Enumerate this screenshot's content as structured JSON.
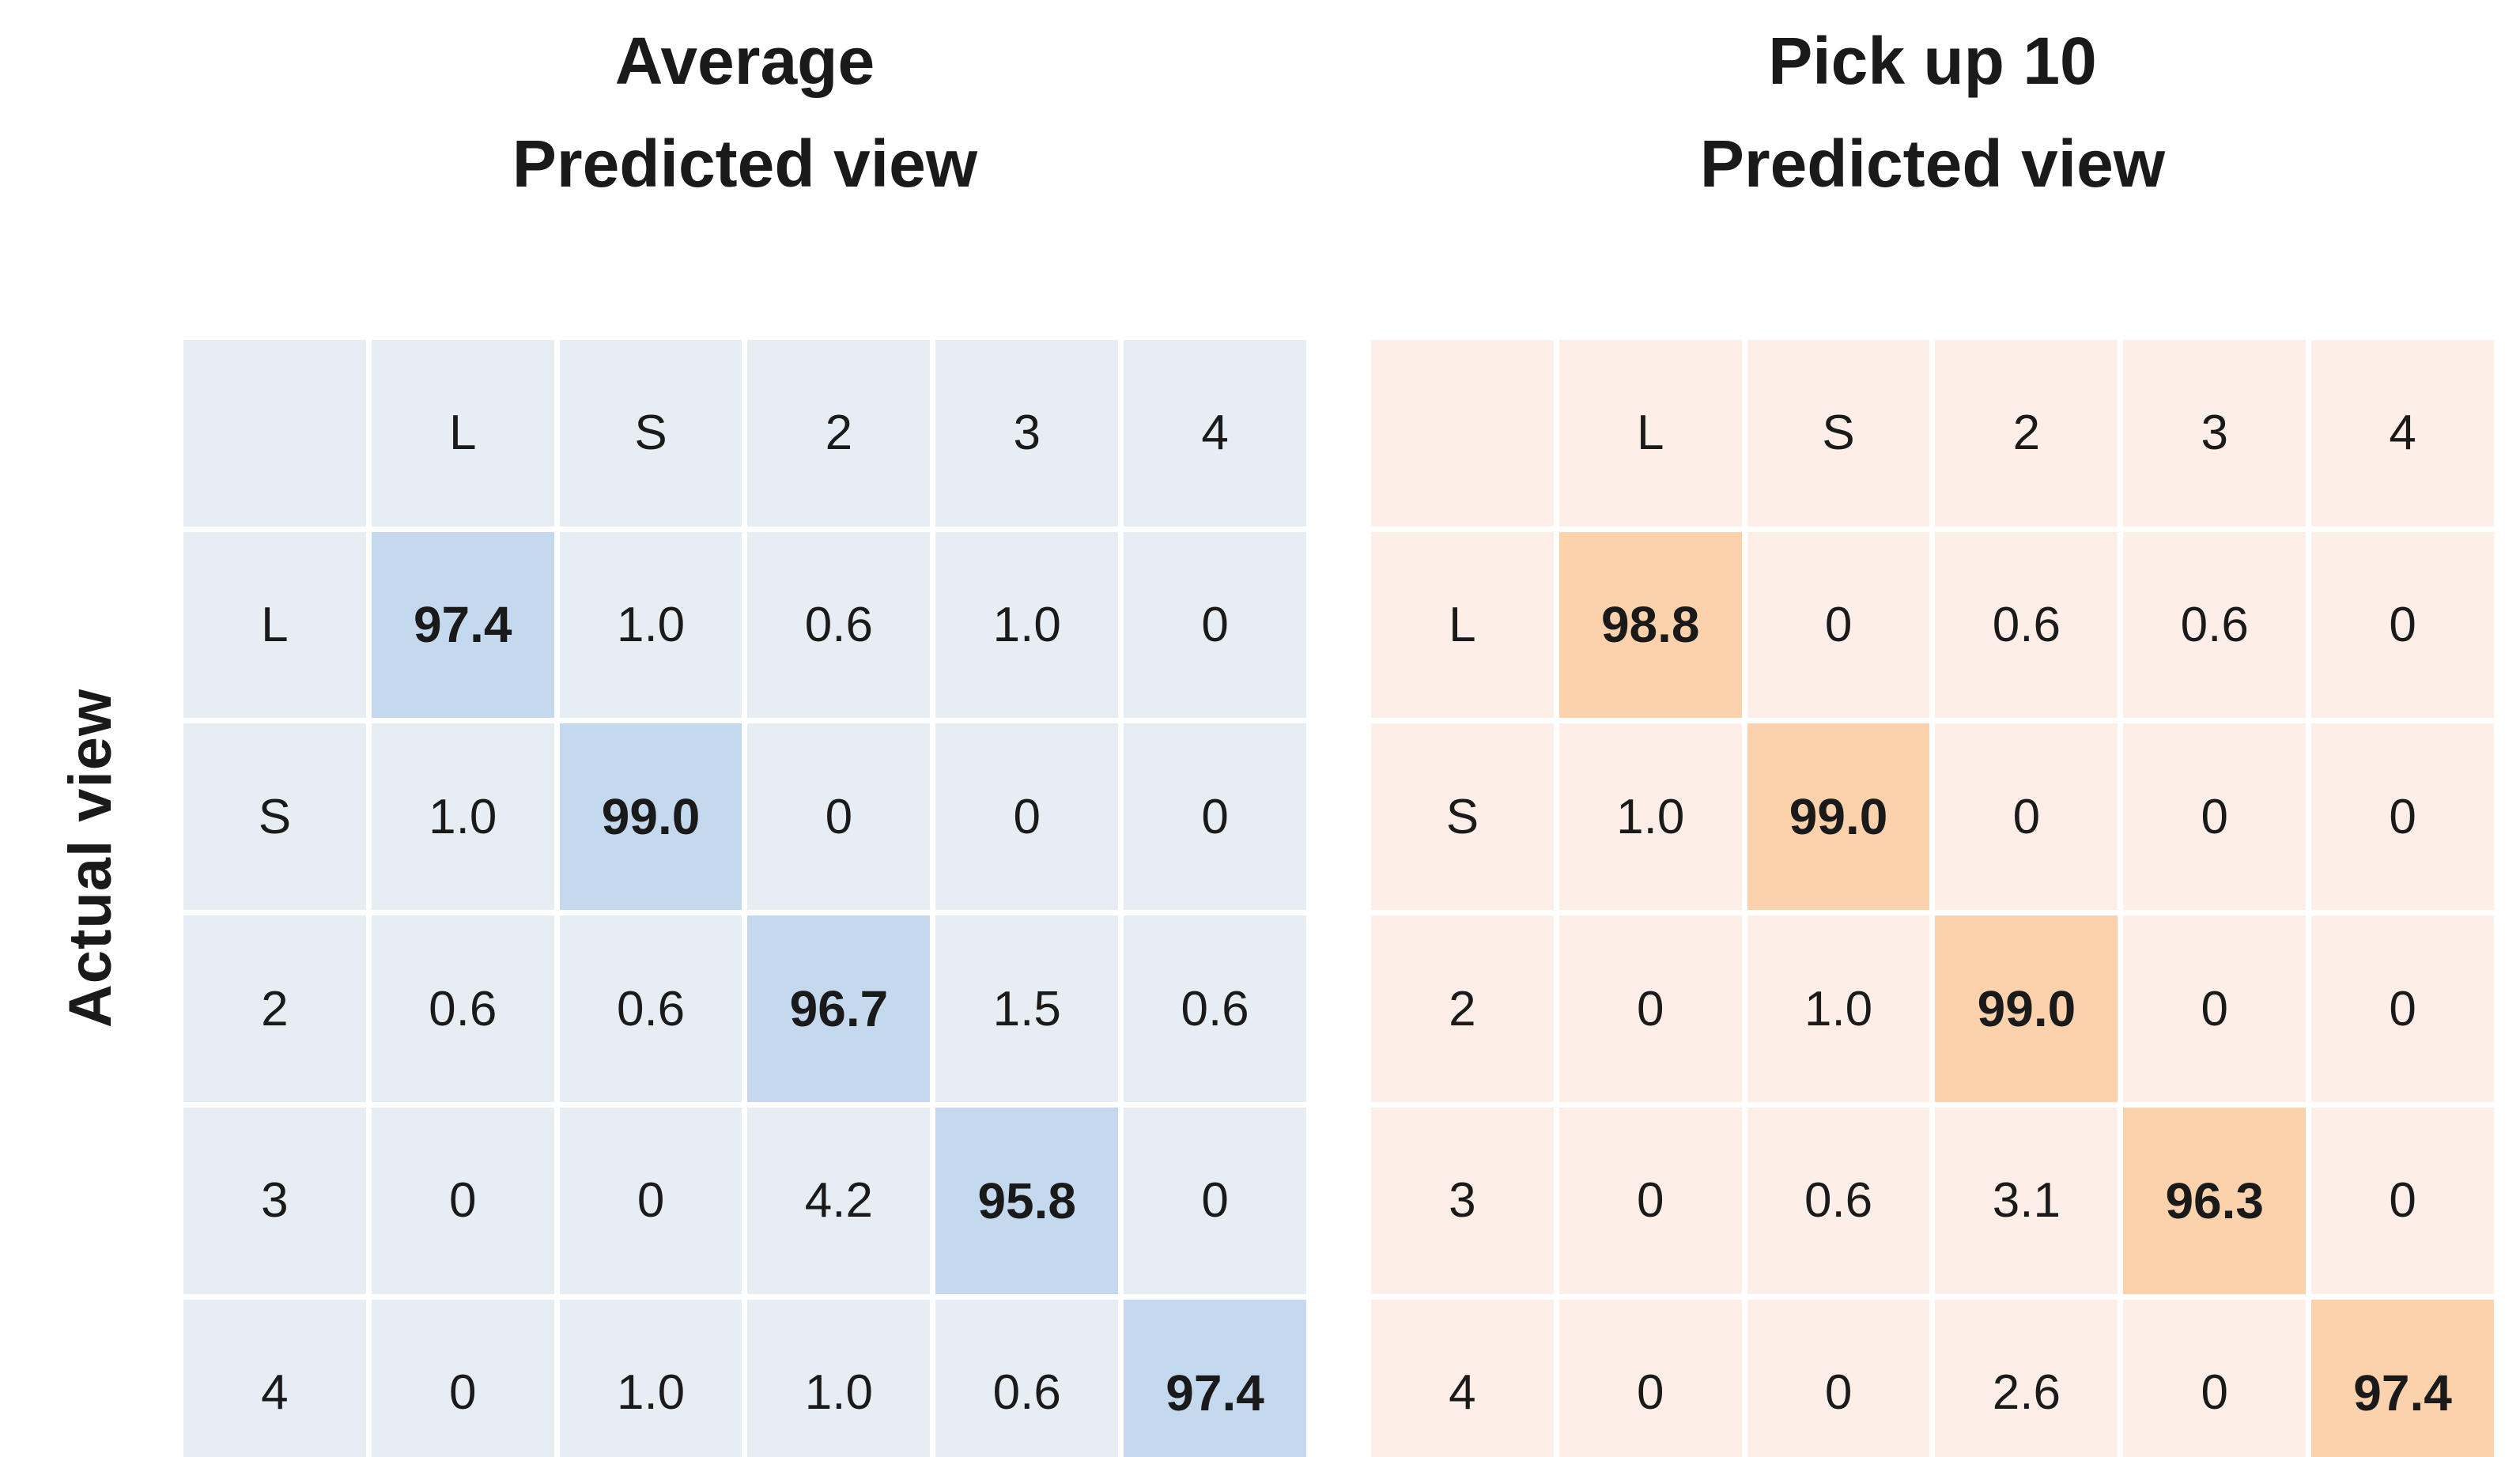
{
  "ylabel": "Actual view",
  "chart_data": [
    {
      "type": "heatmap",
      "title": "Average",
      "xlabel": "Predicted view",
      "ylabel": "Actual view",
      "columns": [
        "L",
        "S",
        "2",
        "3",
        "4"
      ],
      "row_labels": [
        "L",
        "S",
        "2",
        "3",
        "4"
      ],
      "values": [
        [
          "97.4",
          "1.0",
          "0.6",
          "1.0",
          "0"
        ],
        [
          "1.0",
          "99.0",
          "0",
          "0",
          "0"
        ],
        [
          "0.6",
          "0.6",
          "96.7",
          "1.5",
          "0.6"
        ],
        [
          "0",
          "0",
          "4.2",
          "95.8",
          "0"
        ],
        [
          "0",
          "1.0",
          "1.0",
          "0.6",
          "97.4"
        ]
      ],
      "diagonal_highlight": true,
      "legend_position": "none",
      "grid": true,
      "colors": {
        "cell": "#e6eef3",
        "diagonal": "#c4d9ee",
        "gridline": "#ffffff"
      }
    },
    {
      "type": "heatmap",
      "title": "Pick up 10",
      "xlabel": "Predicted view",
      "ylabel": "Actual view",
      "columns": [
        "L",
        "S",
        "2",
        "3",
        "4"
      ],
      "row_labels": [
        "L",
        "S",
        "2",
        "3",
        "4"
      ],
      "values": [
        [
          "98.8",
          "0",
          "0.6",
          "0.6",
          "0"
        ],
        [
          "1.0",
          "99.0",
          "0",
          "0",
          "0"
        ],
        [
          "0",
          "1.0",
          "99.0",
          "0",
          "0"
        ],
        [
          "0",
          "0.6",
          "3.1",
          "96.3",
          "0"
        ],
        [
          "0",
          "0",
          "2.6",
          "0",
          "97.4"
        ]
      ],
      "diagonal_highlight": true,
      "legend_position": "none",
      "grid": true,
      "colors": {
        "cell": "#fdeee7",
        "diagonal": "#fbd2ab",
        "gridline": "#ffffff"
      }
    }
  ]
}
